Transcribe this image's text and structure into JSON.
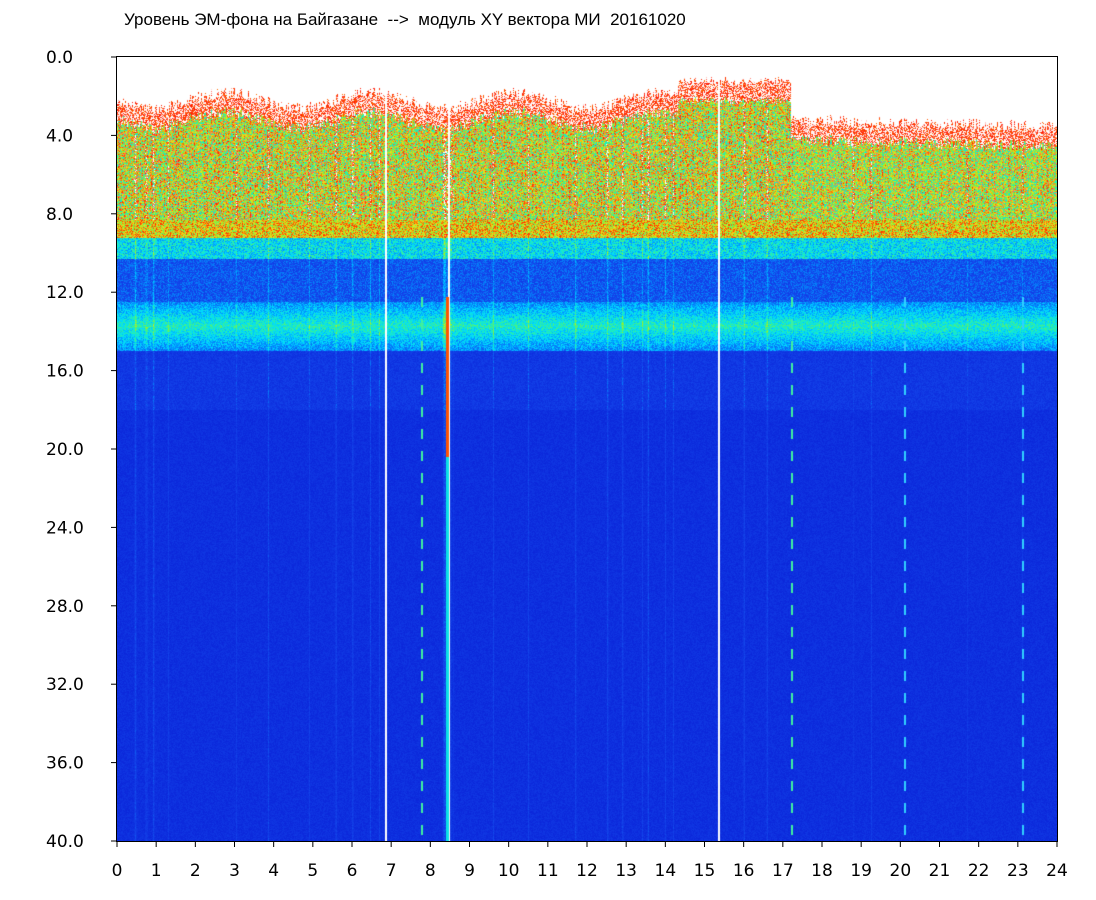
{
  "chart_data": {
    "type": "heatmap",
    "title": "Уровень ЭМ-фона на Байгазане  -->  модуль XY вектора МИ  20161020",
    "xlabel": "",
    "ylabel": "",
    "x_range": [
      0,
      24
    ],
    "y_range": [
      0.0,
      40.0
    ],
    "y_inverted": true,
    "x_ticks": [
      "0",
      "1",
      "2",
      "3",
      "4",
      "5",
      "6",
      "7",
      "8",
      "9",
      "10",
      "11",
      "12",
      "13",
      "14",
      "15",
      "16",
      "17",
      "18",
      "19",
      "20",
      "21",
      "22",
      "23",
      "24"
    ],
    "y_ticks": [
      "0.0",
      "4.0",
      "8.0",
      "12.0",
      "16.0",
      "20.0",
      "24.0",
      "28.0",
      "32.0",
      "36.0",
      "40.0"
    ],
    "colorscale": [
      "#0a23d8",
      "#1e5cf0",
      "#00d0ff",
      "#28f0a0",
      "#9af028",
      "#f0e020",
      "#ff6a00",
      "#ff1400",
      "#ffffff"
    ],
    "background_level_color": "#0a23d8",
    "description_bands": [
      {
        "y_from": 1.5,
        "y_to": 8.5,
        "level": "high"
      },
      {
        "y_from": 8.5,
        "y_to": 10.0,
        "level": "medium"
      },
      {
        "y_from": 12.5,
        "y_to": 15.0,
        "level": "low-medium"
      },
      {
        "y_from": 15.0,
        "y_to": 40.0,
        "level": "background"
      }
    ],
    "data_gaps_hours": [
      6.85,
      8.45,
      15.35
    ],
    "dashed_lines_hours": [
      7.75,
      17.2,
      20.1,
      23.1
    ],
    "grid": false
  }
}
